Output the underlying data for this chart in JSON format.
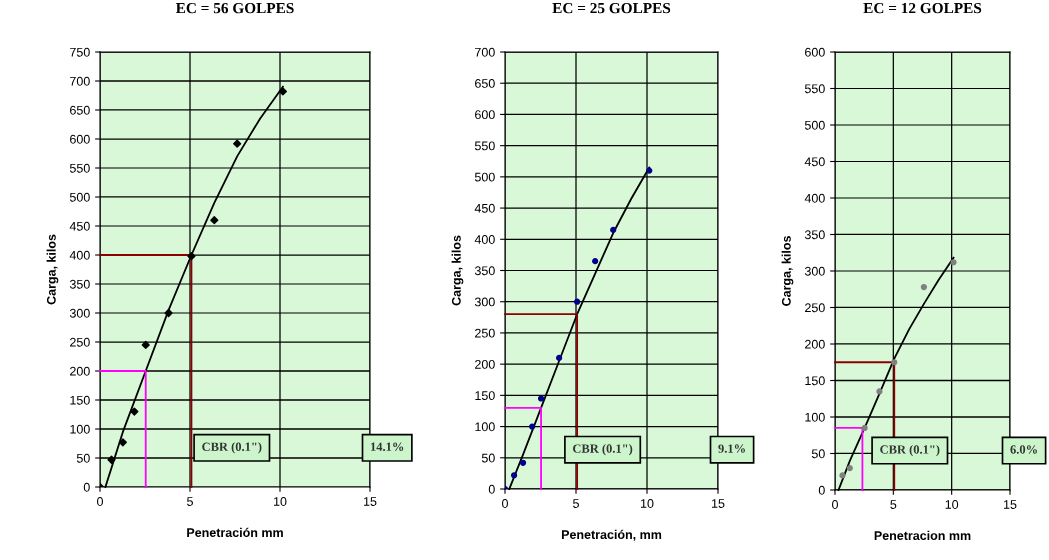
{
  "chart_data": [
    {
      "type": "scatter",
      "title": "EC = 56 GOLPES",
      "xlabel": "Penetración mm",
      "ylabel": "Carga, kilos",
      "xlim": [
        0,
        15
      ],
      "xticks": [
        0,
        5,
        10,
        15
      ],
      "ylim": [
        0,
        750
      ],
      "yticks": [
        0,
        50,
        100,
        150,
        200,
        250,
        300,
        350,
        400,
        450,
        500,
        550,
        600,
        650,
        700,
        750
      ],
      "grid": true,
      "legend": false,
      "series": [
        {
          "marker": "diamond",
          "color": "#000000",
          "x": [
            0,
            0.64,
            1.27,
            1.91,
            2.54,
            3.81,
            5.08,
            6.35,
            7.62,
            10.16
          ],
          "values": [
            0,
            47,
            77,
            130,
            245,
            300,
            398,
            460,
            592,
            682
          ]
        },
        {
          "type": "line",
          "marker": "none",
          "color": "#000000",
          "x": [
            0.3,
            1.27,
            2.54,
            3.81,
            5.08,
            6.35,
            7.62,
            8.89,
            10.16
          ],
          "values": [
            0,
            95,
            200,
            305,
            400,
            490,
            570,
            635,
            690
          ]
        },
        {
          "type": "line",
          "marker": "none",
          "color": "#ff00ff",
          "x": [
            0,
            2.54,
            2.54
          ],
          "values": [
            200,
            200,
            0
          ]
        },
        {
          "type": "line",
          "marker": "none",
          "color": "#8b0000",
          "x": [
            0,
            5.08,
            5.08
          ],
          "values": [
            400,
            400,
            0
          ]
        }
      ],
      "annotations": [
        "CBR (0.1\")",
        "14.1%"
      ]
    },
    {
      "type": "scatter",
      "title": "EC = 25 GOLPES",
      "xlabel": "Penetración, mm",
      "ylabel": "Carga, kilos",
      "xlim": [
        0,
        15
      ],
      "xticks": [
        0,
        5,
        10,
        15
      ],
      "ylim": [
        0,
        700
      ],
      "yticks": [
        0,
        50,
        100,
        150,
        200,
        250,
        300,
        350,
        400,
        450,
        500,
        550,
        600,
        650,
        700
      ],
      "grid": true,
      "legend": false,
      "series": [
        {
          "marker": "circle",
          "color": "#00008b",
          "x": [
            0,
            0.64,
            1.27,
            1.91,
            2.54,
            3.81,
            5.08,
            6.35,
            7.62,
            10.16
          ],
          "values": [
            0,
            22,
            42,
            100,
            145,
            210,
            300,
            365,
            415,
            510
          ]
        },
        {
          "type": "line",
          "marker": "none",
          "color": "#000000",
          "x": [
            0.3,
            1.27,
            2.54,
            3.81,
            5.08,
            6.35,
            7.62,
            8.89,
            10.16
          ],
          "values": [
            0,
            55,
            130,
            205,
            280,
            345,
            410,
            465,
            515
          ]
        },
        {
          "type": "line",
          "marker": "none",
          "color": "#ff00ff",
          "x": [
            0,
            2.54,
            2.54
          ],
          "values": [
            130,
            130,
            0
          ]
        },
        {
          "type": "line",
          "marker": "none",
          "color": "#8b0000",
          "x": [
            0,
            5.08,
            5.08
          ],
          "values": [
            280,
            280,
            0
          ]
        }
      ],
      "annotations": [
        "CBR (0.1\")",
        "9.1%"
      ]
    },
    {
      "type": "scatter",
      "title": "EC = 12 GOLPES",
      "xlabel": "Penetracion mm",
      "ylabel": "Carga, kilos",
      "xlim": [
        0,
        15
      ],
      "xticks": [
        0,
        5,
        10,
        15
      ],
      "ylim": [
        0,
        600
      ],
      "yticks": [
        0,
        50,
        100,
        150,
        200,
        250,
        300,
        350,
        400,
        450,
        500,
        550,
        600
      ],
      "grid": true,
      "legend": false,
      "series": [
        {
          "marker": "circle",
          "color": "#808080",
          "x": [
            0.64,
            1.27,
            2.54,
            3.81,
            5.08,
            7.62,
            10.16
          ],
          "values": [
            20,
            30,
            85,
            135,
            175,
            278,
            312
          ]
        },
        {
          "type": "line",
          "marker": "none",
          "color": "#000000",
          "x": [
            0.3,
            1.27,
            2.54,
            3.81,
            5.08,
            6.35,
            7.62,
            8.89,
            10.16
          ],
          "values": [
            0,
            40,
            85,
            132,
            180,
            220,
            255,
            288,
            318
          ]
        },
        {
          "type": "line",
          "marker": "none",
          "color": "#ff00ff",
          "x": [
            0,
            2.35,
            2.35
          ],
          "values": [
            85,
            85,
            0
          ]
        },
        {
          "type": "line",
          "marker": "none",
          "color": "#8b0000",
          "x": [
            0,
            5.08,
            5.08
          ],
          "values": [
            175,
            175,
            0
          ]
        }
      ],
      "annotations": [
        "CBR (0.1\")",
        "6.0%"
      ]
    }
  ]
}
